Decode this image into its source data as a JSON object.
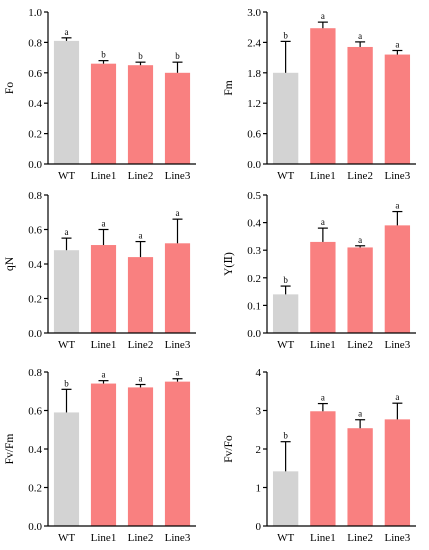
{
  "colors": {
    "control": "#d3d3d3",
    "line": "#f98080",
    "axis": "#000000",
    "errorbar": "#000000"
  },
  "chart_data": [
    {
      "type": "bar",
      "ylabel": "Fo",
      "categories": [
        "WT",
        "Line1",
        "Line2",
        "Line3"
      ],
      "values": [
        0.81,
        0.66,
        0.65,
        0.6
      ],
      "errors": [
        0.02,
        0.02,
        0.02,
        0.07
      ],
      "significance": [
        "a",
        "b",
        "b",
        "b"
      ],
      "ylim": [
        0,
        1.0
      ],
      "yticks": [
        0,
        0.2,
        0.4,
        0.6,
        0.8,
        1.0
      ],
      "ytick_labels": [
        "0.0",
        "0.2",
        "0.4",
        "0.6",
        "0.8",
        "1.0"
      ],
      "grid": false
    },
    {
      "type": "bar",
      "ylabel": "Fm",
      "categories": [
        "WT",
        "Line1",
        "Line2",
        "Line3"
      ],
      "values": [
        1.8,
        2.68,
        2.31,
        2.16
      ],
      "errors": [
        0.62,
        0.12,
        0.1,
        0.08
      ],
      "significance": [
        "b",
        "a",
        "a",
        "a"
      ],
      "ylim": [
        0,
        3.0
      ],
      "yticks": [
        0,
        0.6,
        1.2,
        1.8,
        2.4,
        3.0
      ],
      "ytick_labels": [
        "0.0",
        "0.6",
        "1.2",
        "1.8",
        "2.4",
        "3.0"
      ],
      "grid": false
    },
    {
      "type": "bar",
      "ylabel": "qN",
      "categories": [
        "WT",
        "Line1",
        "Line2",
        "Line3"
      ],
      "values": [
        0.48,
        0.51,
        0.44,
        0.52
      ],
      "errors": [
        0.07,
        0.09,
        0.09,
        0.14
      ],
      "significance": [
        "a",
        "a",
        "a",
        "a"
      ],
      "ylim": [
        0,
        0.8
      ],
      "yticks": [
        0,
        0.2,
        0.4,
        0.6,
        0.8
      ],
      "ytick_labels": [
        "0.0",
        "0.2",
        "0.4",
        "0.6",
        "0.8"
      ],
      "grid": false
    },
    {
      "type": "bar",
      "ylabel": "Y(Ⅱ)",
      "categories": [
        "WT",
        "Line1",
        "Line2",
        "Line3"
      ],
      "values": [
        0.14,
        0.33,
        0.31,
        0.39
      ],
      "errors": [
        0.03,
        0.05,
        0.006,
        0.05
      ],
      "significance": [
        "b",
        "a",
        "a",
        "a"
      ],
      "ylim": [
        0,
        0.5
      ],
      "yticks": [
        0,
        0.1,
        0.2,
        0.3,
        0.4,
        0.5
      ],
      "ytick_labels": [
        "0.0",
        "0.1",
        "0.2",
        "0.3",
        "0.4",
        "0.5"
      ],
      "grid": false
    },
    {
      "type": "bar",
      "ylabel": "Fv/Fm",
      "categories": [
        "WT",
        "Line1",
        "Line2",
        "Line3"
      ],
      "values": [
        0.59,
        0.74,
        0.72,
        0.75
      ],
      "errors": [
        0.12,
        0.015,
        0.015,
        0.015
      ],
      "significance": [
        "b",
        "a",
        "a",
        "a"
      ],
      "ylim": [
        0,
        0.8
      ],
      "yticks": [
        0,
        0.2,
        0.4,
        0.6,
        0.8
      ],
      "ytick_labels": [
        "0.0",
        "0.2",
        "0.4",
        "0.6",
        "0.8"
      ],
      "grid": false
    },
    {
      "type": "bar",
      "ylabel": "Fv/Fo",
      "categories": [
        "WT",
        "Line1",
        "Line2",
        "Line3"
      ],
      "values": [
        1.42,
        2.98,
        2.54,
        2.77
      ],
      "errors": [
        0.77,
        0.2,
        0.22,
        0.42
      ],
      "significance": [
        "b",
        "a",
        "a",
        "a"
      ],
      "ylim": [
        0,
        4
      ],
      "yticks": [
        0,
        1,
        2,
        3,
        4
      ],
      "ytick_labels": [
        "0",
        "1",
        "2",
        "3",
        "4"
      ],
      "grid": false
    }
  ]
}
